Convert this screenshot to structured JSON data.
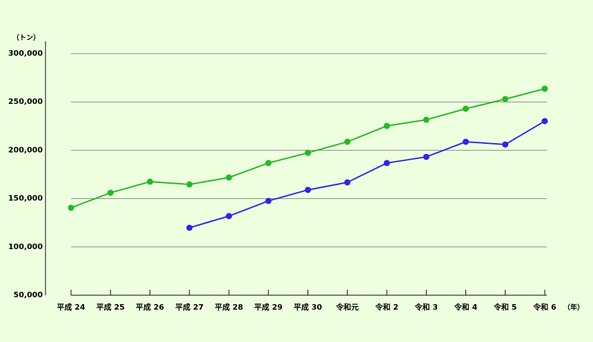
{
  "chart_data": {
    "type": "line",
    "y_label": "（トン）",
    "x_label": "（年）",
    "categories": [
      "平成 24",
      "平成 25",
      "平成 26",
      "平成 27",
      "平成 28",
      "平成 29",
      "平成 30",
      "令和元",
      "令和 2",
      "令和 3",
      "令和 4",
      "令和 5",
      "令和 6"
    ],
    "series": [
      {
        "color": "#22bb22",
        "values": [
          140500,
          156000,
          167500,
          164700,
          171800,
          186800,
          197400,
          208800,
          225200,
          231600,
          243000,
          253000,
          263700
        ]
      },
      {
        "color": "#3322ee",
        "values": [
          null,
          null,
          null,
          119800,
          131900,
          147600,
          159000,
          166800,
          186800,
          193200,
          208800,
          206000,
          230200
        ]
      }
    ],
    "ylim": [
      50000,
      300000
    ],
    "yticks": [
      {
        "value": 50000,
        "label": "50,000"
      },
      {
        "value": 100000,
        "label": "100,000"
      },
      {
        "value": 150000,
        "label": "150,000"
      },
      {
        "value": 200000,
        "label": "200,000"
      },
      {
        "value": 250000,
        "label": "250,000"
      },
      {
        "value": 300000,
        "label": "300,000"
      }
    ],
    "grid": true
  }
}
